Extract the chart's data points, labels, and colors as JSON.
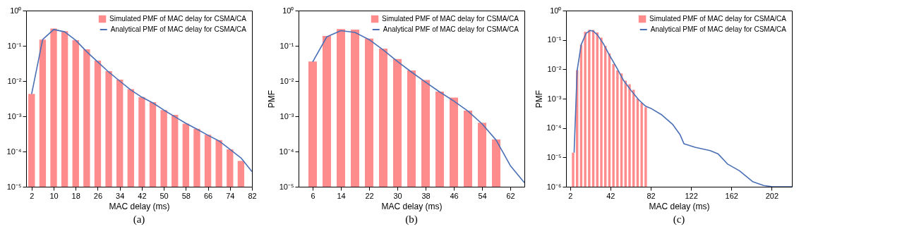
{
  "chart_data": [
    {
      "type": "bar",
      "xlabel": "MAC delay (ms)",
      "annotations": [
        "(a)"
      ],
      "log": true,
      "legend": "top right",
      "x": [
        2,
        6,
        10,
        14,
        18,
        22,
        26,
        30,
        34,
        38,
        42,
        46,
        50,
        54,
        58,
        62,
        66,
        70,
        74,
        78
      ],
      "series": [
        {
          "name": "Simulated PMF of MAC delay for CSMA/CA",
          "color": "#ff8c8c",
          "values": [
            0.0043,
            0.15,
            0.31,
            0.26,
            0.144,
            0.079,
            0.038,
            0.019,
            0.011,
            0.0059,
            0.0035,
            0.0025,
            0.0015,
            0.0011,
            0.00062,
            0.00044,
            0.0003,
            0.00021,
            0.000115,
            5.4e-05
          ]
        },
        {
          "name": "Analytical PMF of MAC delay for CSMA/CA",
          "type": "line",
          "color": "#4a6fb5",
          "x": [
            2,
            6,
            10,
            14,
            18,
            22,
            26,
            30,
            34,
            38,
            42,
            46,
            50,
            54,
            58,
            62,
            66,
            70,
            74,
            78,
            82
          ],
          "values": [
            0.0043,
            0.15,
            0.29,
            0.25,
            0.144,
            0.068,
            0.035,
            0.018,
            0.01,
            0.0056,
            0.0035,
            0.0024,
            0.0015,
            0.00097,
            0.00063,
            0.00043,
            0.00029,
            0.0002,
            0.000115,
            6.6e-05,
            2.7e-05
          ]
        }
      ],
      "xlim": [
        0,
        82
      ],
      "xticks": [
        2,
        10,
        18,
        26,
        34,
        42,
        50,
        58,
        66,
        74,
        82
      ],
      "ylim": [
        1e-05,
        1
      ],
      "yticks": [
        {
          "value": 1e-05,
          "label": "10⁻⁵"
        },
        {
          "value": 0.0001,
          "label": "10⁻⁴"
        },
        {
          "value": 0.001,
          "label": "10⁻³"
        },
        {
          "value": 0.01,
          "label": "10⁻²"
        },
        {
          "value": 0.1,
          "label": "10⁻¹"
        },
        {
          "value": 1,
          "label": "10⁰"
        }
      ]
    },
    {
      "type": "bar",
      "xlabel": "MAC delay (ms)",
      "ylabel": "PMF",
      "annotations": [
        "(b)"
      ],
      "log": true,
      "legend": "top right",
      "x": [
        6,
        10,
        14,
        18,
        22,
        26,
        30,
        34,
        38,
        42,
        46,
        50,
        54,
        58
      ],
      "series": [
        {
          "name": "Simulated PMF of MAC delay for CSMA/CA",
          "color": "#ff8c8c",
          "values": [
            0.036,
            0.19,
            0.3,
            0.29,
            0.16,
            0.083,
            0.042,
            0.02,
            0.0107,
            0.005,
            0.0034,
            0.00145,
            0.00065,
            0.00022
          ]
        },
        {
          "name": "Analytical PMF of MAC delay for CSMA/CA",
          "type": "line",
          "color": "#4a6fb5",
          "x": [
            6,
            10,
            14,
            18,
            22,
            26,
            30,
            34,
            38,
            42,
            46,
            50,
            54,
            58,
            62,
            66
          ],
          "values": [
            0.035,
            0.18,
            0.27,
            0.24,
            0.15,
            0.076,
            0.036,
            0.018,
            0.0093,
            0.0049,
            0.0027,
            0.0014,
            0.00061,
            0.00021,
            4e-05,
            1.3e-05
          ]
        }
      ],
      "xlim": [
        2,
        66
      ],
      "xticks": [
        6,
        14,
        22,
        30,
        38,
        46,
        54,
        62
      ],
      "ylim": [
        1e-05,
        1
      ],
      "yticks": [
        {
          "value": 1e-05,
          "label": "10⁻⁵"
        },
        {
          "value": 0.0001,
          "label": "10⁻⁴"
        },
        {
          "value": 0.001,
          "label": "10⁻³"
        },
        {
          "value": 0.01,
          "label": "10⁻²"
        },
        {
          "value": 0.1,
          "label": "10⁻¹"
        },
        {
          "value": 1,
          "label": "10⁰"
        }
      ]
    },
    {
      "type": "bar",
      "xlabel": "MAC delay (ms)",
      "ylabel": "PMF",
      "annotations": [
        "(c)"
      ],
      "log": true,
      "legend": "top right",
      "x": [
        5,
        9,
        13,
        17,
        21,
        25,
        29,
        33,
        37,
        41,
        45,
        49,
        53,
        57,
        61,
        65,
        69,
        73,
        77
      ],
      "series": [
        {
          "name": "Simulated PMF of MAC delay for CSMA/CA",
          "color": "#ff8c8c",
          "values": [
            1.45e-05,
            0.0093,
            0.069,
            0.19,
            0.22,
            0.22,
            0.18,
            0.12,
            0.063,
            0.035,
            0.015,
            0.0091,
            0.0072,
            0.0041,
            0.0031,
            0.002,
            0.001,
            0.00072,
            0.00051
          ]
        },
        {
          "name": "Analytical PMF of MAC delay for CSMA/CA",
          "type": "line",
          "color": "#4a6fb5",
          "x": [
            6,
            9,
            13,
            18,
            22,
            25,
            29,
            35,
            40,
            48,
            55,
            63,
            70,
            77,
            82,
            93,
            104,
            111,
            115,
            126,
            141,
            149,
            158,
            170,
            183,
            194,
            203,
            222
          ],
          "values": [
            1.45e-05,
            0.0091,
            0.069,
            0.17,
            0.21,
            0.2,
            0.15,
            0.075,
            0.035,
            0.0117,
            0.0042,
            0.0018,
            0.00092,
            0.00055,
            0.00047,
            0.00028,
            0.00013,
            6e-05,
            2.9e-05,
            2.2e-05,
            1.7e-05,
            1.3e-05,
            6e-06,
            3.5e-06,
            1.5e-06,
            1.1e-06,
            1e-06,
            1e-06
          ]
        }
      ],
      "xlim": [
        -2,
        222
      ],
      "xticks": [
        2,
        42,
        82,
        122,
        162,
        202
      ],
      "ylim": [
        1e-06,
        1
      ],
      "yticks": [
        {
          "value": 1e-06,
          "label": "10⁻⁶"
        },
        {
          "value": 1e-05,
          "label": "10⁻⁵"
        },
        {
          "value": 0.0001,
          "label": "10⁻⁴"
        },
        {
          "value": 0.001,
          "label": "10⁻³"
        },
        {
          "value": 0.01,
          "label": "10⁻²"
        },
        {
          "value": 0.1,
          "label": "10⁻¹"
        },
        {
          "value": 1,
          "label": "10⁰"
        }
      ]
    }
  ]
}
